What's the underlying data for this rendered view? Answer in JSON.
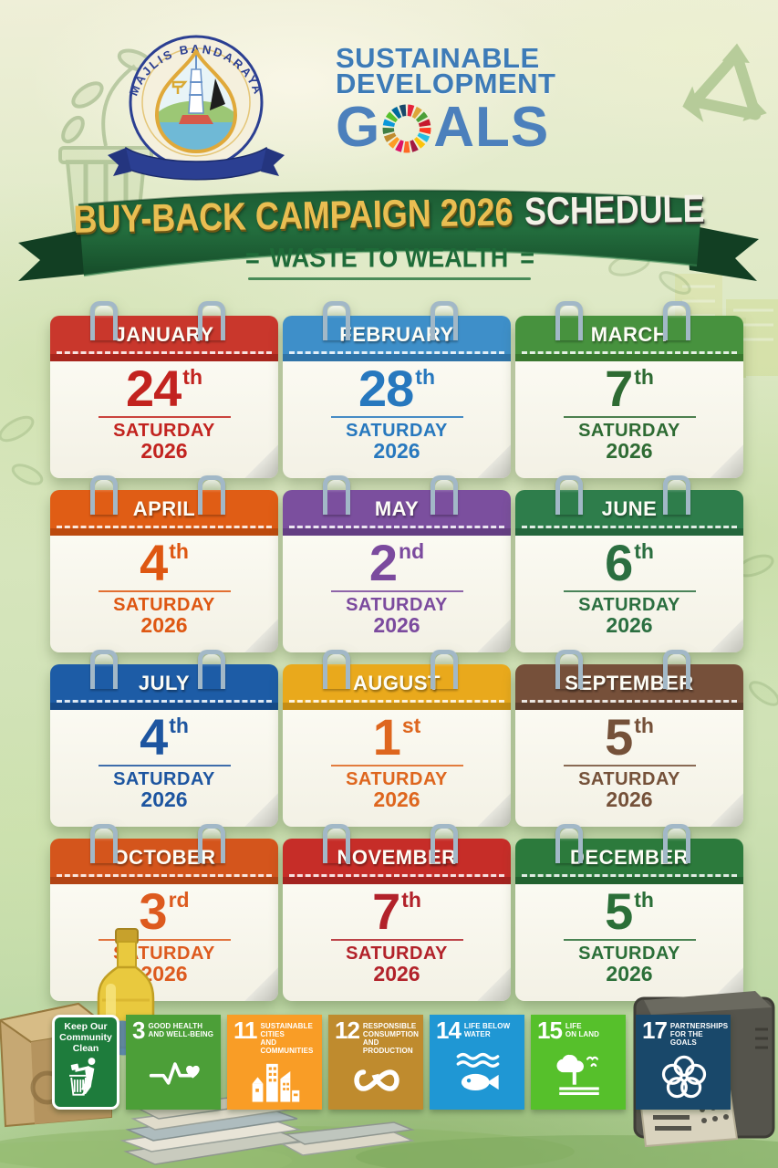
{
  "header": {
    "logo": {
      "crest_text": "MAJLIS BANDARAYA",
      "crest_name": "city-council-crest"
    },
    "title_lines": [
      "SUSTAINABLE",
      "DEVELOPMENT"
    ],
    "goals_prefix": "G",
    "goals_suffix": "ALS",
    "title_color": "#3D7BB7",
    "sdg_wheel_colors": [
      "#E5243B",
      "#DDA63A",
      "#4C9F38",
      "#C5192D",
      "#FF3A21",
      "#26BDE2",
      "#FCC30B",
      "#A21942",
      "#FD6925",
      "#DD1367",
      "#FD9D24",
      "#BF8B2E",
      "#3F7E44",
      "#0A97D9",
      "#56C02B",
      "#00689D",
      "#19486A"
    ]
  },
  "banner": {
    "title_gold": "BUY-BACK CAMPAIGN 2026",
    "title_white": "SCHEDULE",
    "subtitle": "WASTE TO WEALTH",
    "subtitle_decor": "=",
    "ribbon_color": "#1E5B33",
    "gold_color": "#E9BE52",
    "subtitle_color": "#1E6B38"
  },
  "calendar": {
    "months": [
      {
        "name": "JANUARY",
        "day": "24",
        "ordinal": "th",
        "weekday": "SATURDAY",
        "year": "2026",
        "header_color": "#C9372C",
        "strip_color": "#A8261D",
        "ink_color": "#C2231F"
      },
      {
        "name": "FEBRUARY",
        "day": "28",
        "ordinal": "th",
        "weekday": "SATURDAY",
        "year": "2026",
        "header_color": "#3E8FC9",
        "strip_color": "#2F74A8",
        "ink_color": "#2778BE"
      },
      {
        "name": "MARCH",
        "day": "7",
        "ordinal": "th",
        "weekday": "SATURDAY",
        "year": "2026",
        "header_color": "#47923E",
        "strip_color": "#39782F",
        "ink_color": "#2E6B33"
      },
      {
        "name": "APRIL",
        "day": "4",
        "ordinal": "th",
        "weekday": "SATURDAY",
        "year": "2026",
        "header_color": "#E05D15",
        "strip_color": "#BC4A0E",
        "ink_color": "#DE5712"
      },
      {
        "name": "MAY",
        "day": "2",
        "ordinal": "nd",
        "weekday": "SATURDAY",
        "year": "2026",
        "header_color": "#7B4F9E",
        "strip_color": "#643E83",
        "ink_color": "#7B4A9E"
      },
      {
        "name": "JUNE",
        "day": "6",
        "ordinal": "th",
        "weekday": "SATURDAY",
        "year": "2026",
        "header_color": "#2E7D4B",
        "strip_color": "#24663C",
        "ink_color": "#2B6F40"
      },
      {
        "name": "JULY",
        "day": "4",
        "ordinal": "th",
        "weekday": "SATURDAY",
        "year": "2026",
        "header_color": "#1D5CA6",
        "strip_color": "#164A89",
        "ink_color": "#1D55A0"
      },
      {
        "name": "AUGUST",
        "day": "1",
        "ordinal": "st",
        "weekday": "SATURDAY",
        "year": "2026",
        "header_color": "#E9A91C",
        "strip_color": "#C68D12",
        "ink_color": "#DE661E"
      },
      {
        "name": "SEPTEMBER",
        "day": "5",
        "ordinal": "th",
        "weekday": "SATURDAY",
        "year": "2026",
        "header_color": "#76503A",
        "strip_color": "#5E3F2D",
        "ink_color": "#755139"
      },
      {
        "name": "OCTOBER",
        "day": "3",
        "ordinal": "rd",
        "weekday": "SATURDAY",
        "year": "2026",
        "header_color": "#D4551C",
        "strip_color": "#B24414",
        "ink_color": "#DD5A1E"
      },
      {
        "name": "NOVEMBER",
        "day": "7",
        "ordinal": "th",
        "weekday": "SATURDAY",
        "year": "2026",
        "header_color": "#C62D28",
        "strip_color": "#A42320",
        "ink_color": "#B2222A"
      },
      {
        "name": "DECEMBER",
        "day": "5",
        "ordinal": "th",
        "weekday": "SATURDAY",
        "year": "2026",
        "header_color": "#2C7A3C",
        "strip_color": "#226230",
        "ink_color": "#2B6F38"
      }
    ]
  },
  "footer": {
    "sign": {
      "lines": [
        "Keep Our",
        "Community",
        "Clean"
      ],
      "color": "#1E7C3C",
      "icon": "litter-person-icon"
    },
    "sdg_tiles": [
      {
        "number": "3",
        "title_lines": [
          "GOOD HEALTH",
          "AND WELL-BEING"
        ],
        "color": "#4C9F38",
        "icon": "heartbeat-icon"
      },
      {
        "number": "11",
        "title_lines": [
          "SUSTAINABLE CITIES",
          "AND COMMUNITIES"
        ],
        "color": "#F99D26",
        "icon": "city-icon"
      },
      {
        "number": "12",
        "title_lines": [
          "RESPONSIBLE",
          "CONSUMPTION",
          "AND PRODUCTION"
        ],
        "color": "#BF8B2E",
        "icon": "infinity-icon"
      },
      {
        "number": "14",
        "title_lines": [
          "LIFE BELOW",
          "WATER"
        ],
        "color": "#1F97D4",
        "icon": "fish-icon"
      },
      {
        "number": "15",
        "title_lines": [
          "LIFE",
          "ON LAND"
        ],
        "color": "#56C02B",
        "icon": "tree-icon"
      },
      {
        "number": "17",
        "title_lines": [
          "PARTNERSHIPS",
          "FOR THE GOALS"
        ],
        "color": "#19486A",
        "icon": "partnership-icon"
      }
    ]
  }
}
